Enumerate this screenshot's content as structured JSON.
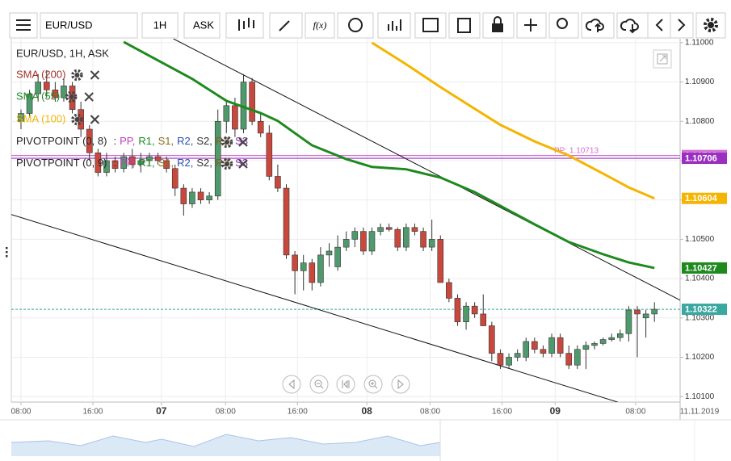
{
  "toolbar": {
    "symbol": "EUR/USD",
    "interval": "1H",
    "price_type": "ASK",
    "function": "f(x)"
  },
  "legend": {
    "instrument": "EUR/USD, 1H, ASK",
    "indicators": [
      {
        "name": "SMA (200)",
        "color": "#a0302a"
      },
      {
        "name": "SMA (55)",
        "color": "#1e8a1e"
      },
      {
        "name": "SMA (100)",
        "color": "#f5b400"
      }
    ],
    "pivots": [
      {
        "name": "PIVOTPOINT (0, 8)",
        "lead": ":",
        "levels": [
          "PP,",
          "R1,",
          "S1,",
          "R2,",
          "S2,",
          "R3,",
          "S3"
        ]
      },
      {
        "name": "PIVOTPOINT (0, 9)",
        "lead": ":",
        "levels": [
          "PP,",
          "R1,",
          "S1,",
          "R2,",
          "S2,",
          "R3,",
          "S3"
        ]
      }
    ],
    "level_colors": [
      "#c03cc0",
      "#1e8a1e",
      "#8a6d1e",
      "#2a4fb0",
      "#333333",
      "#8a5a1e",
      "#8a2ab0"
    ]
  },
  "chart_data": {
    "type": "candlestick",
    "up_color": "#4f9a6c",
    "down_color": "#c9483d",
    "x": [
      0,
      1,
      2,
      3,
      4,
      5,
      6,
      7,
      8,
      9,
      10,
      11,
      12,
      13,
      14,
      15,
      16,
      17,
      18,
      19,
      20,
      21,
      22,
      23,
      24,
      25,
      26,
      27,
      28,
      29,
      30,
      31,
      32,
      33,
      34,
      35,
      36,
      37,
      38,
      39,
      40,
      41,
      42,
      43,
      44,
      45,
      46,
      47,
      48,
      49,
      50,
      51,
      52,
      53,
      54,
      55,
      56,
      57,
      58,
      59,
      60,
      61,
      62,
      63,
      64,
      65,
      66,
      67,
      68,
      69,
      70,
      71,
      72,
      73,
      74
    ],
    "open": [
      1.108,
      1.1082,
      1.1087,
      1.109,
      1.1088,
      1.1086,
      1.1089,
      1.1083,
      1.1078,
      1.1072,
      1.1067,
      1.107,
      1.1068,
      1.1071,
      1.1069,
      1.107,
      1.1071,
      1.107,
      1.1068,
      1.1063,
      1.1059,
      1.1062,
      1.106,
      1.1061,
      1.108,
      1.1084,
      1.1078,
      1.109,
      1.108,
      1.1077,
      1.1066,
      1.1063,
      1.1046,
      1.1042,
      1.1044,
      1.1039,
      1.1046,
      1.1043,
      1.1048,
      1.105,
      1.1052,
      1.1047,
      1.1052,
      1.1053,
      1.10525,
      1.1048,
      1.1053,
      1.1052,
      1.1048,
      1.105,
      1.1039,
      1.1035,
      1.1029,
      1.1033,
      1.1031,
      1.1028,
      1.1021,
      1.1018,
      1.102,
      1.102,
      1.1024,
      1.1022,
      1.1021,
      1.1025,
      1.1021,
      1.1018,
      1.1022,
      1.1023,
      1.10235,
      1.10245,
      1.1025,
      1.1026,
      1.1032,
      1.103,
      1.1031
    ],
    "high": [
      1.1083,
      1.1088,
      1.1092,
      1.1093,
      1.109,
      1.1091,
      1.109,
      1.1085,
      1.1079,
      1.1073,
      1.1072,
      1.1071,
      1.1072,
      1.1073,
      1.1072,
      1.1072,
      1.1072,
      1.1071,
      1.1069,
      1.1064,
      1.1063,
      1.1063,
      1.1062,
      1.1083,
      1.1085,
      1.1086,
      1.1092,
      1.1091,
      1.1082,
      1.1079,
      1.1069,
      1.1064,
      1.1047,
      1.1046,
      1.1045,
      1.1048,
      1.1049,
      1.1051,
      1.1052,
      1.1053,
      1.1053,
      1.1053,
      1.1054,
      1.1054,
      1.1053,
      1.1054,
      1.1054,
      1.1053,
      1.1055,
      1.1051,
      1.104,
      1.1036,
      1.1034,
      1.1034,
      1.1036,
      1.1029,
      1.1022,
      1.1021,
      1.1022,
      1.1025,
      1.1025,
      1.1023,
      1.1026,
      1.1026,
      1.1023,
      1.1023,
      1.1024,
      1.1024,
      1.1025,
      1.1026,
      1.1027,
      1.1033,
      1.1033,
      1.1032,
      1.1034
    ],
    "low": [
      1.1078,
      1.1081,
      1.1085,
      1.1086,
      1.1085,
      1.1085,
      1.1082,
      1.1076,
      1.107,
      1.1066,
      1.1066,
      1.1067,
      1.1067,
      1.1068,
      1.1067,
      1.1069,
      1.1069,
      1.1067,
      1.1061,
      1.1056,
      1.1058,
      1.1059,
      1.1059,
      1.106,
      1.1077,
      1.1076,
      1.1077,
      1.1079,
      1.1076,
      1.1065,
      1.1062,
      1.1045,
      1.1036,
      1.1037,
      1.1037,
      1.1038,
      1.1043,
      1.1042,
      1.1047,
      1.1048,
      1.1046,
      1.1046,
      1.1051,
      1.1052,
      1.1047,
      1.1047,
      1.1051,
      1.1047,
      1.1047,
      1.1039,
      1.1034,
      1.1028,
      1.1027,
      1.103,
      1.1028,
      1.1019,
      1.1017,
      1.1017,
      1.1019,
      1.1019,
      1.1021,
      1.102,
      1.102,
      1.102,
      1.1017,
      1.1017,
      1.1017,
      1.1022,
      1.1023,
      1.1024,
      1.1024,
      1.1024,
      1.102,
      1.1025,
      1.1029
    ],
    "close": [
      1.1082,
      1.1087,
      1.109,
      1.1088,
      1.1086,
      1.1089,
      1.1083,
      1.1078,
      1.1072,
      1.1067,
      1.107,
      1.1068,
      1.1071,
      1.1069,
      1.107,
      1.1071,
      1.107,
      1.1068,
      1.1063,
      1.1059,
      1.1062,
      1.106,
      1.1061,
      1.108,
      1.1084,
      1.1078,
      1.109,
      1.108,
      1.1077,
      1.1066,
      1.1063,
      1.1046,
      1.1042,
      1.1044,
      1.1039,
      1.1046,
      1.1047,
      1.1048,
      1.105,
      1.1052,
      1.1047,
      1.1052,
      1.1053,
      1.10525,
      1.1048,
      1.1053,
      1.1052,
      1.1048,
      1.105,
      1.1039,
      1.1035,
      1.1029,
      1.1033,
      1.1031,
      1.1028,
      1.1021,
      1.1018,
      1.102,
      1.1021,
      1.1024,
      1.1022,
      1.1021,
      1.1025,
      1.1021,
      1.1018,
      1.1022,
      1.1023,
      1.10235,
      1.10245,
      1.1025,
      1.1026,
      1.1032,
      1.1031,
      1.1031,
      1.10322
    ],
    "series": [
      {
        "name": "SMA (55)",
        "color": "#1e8a1e",
        "x": [
          12,
          16,
          20,
          24,
          28,
          30,
          34,
          38,
          41,
          45,
          49,
          53,
          56,
          60,
          64,
          68,
          71,
          74
        ],
        "values": [
          1.11002,
          1.10955,
          1.10908,
          1.10852,
          1.10821,
          1.10801,
          1.10739,
          1.10704,
          1.10684,
          1.10678,
          1.10657,
          1.1062,
          1.10585,
          1.10538,
          1.10493,
          1.10462,
          1.10441,
          1.10427
        ]
      },
      {
        "name": "SMA (100)",
        "color": "#f5b400",
        "x": [
          41,
          45,
          49,
          53,
          56,
          60,
          64,
          68,
          71,
          74
        ],
        "values": [
          1.11,
          1.10945,
          1.10887,
          1.10832,
          1.10791,
          1.10749,
          1.10713,
          1.10667,
          1.10632,
          1.10604
        ]
      }
    ],
    "trendlines": [
      {
        "color": "#111111",
        "x": [
          17.8,
          77
        ],
        "values": [
          1.1101,
          1.10345
        ]
      },
      {
        "color": "#111111",
        "x": [
          -1.13,
          69.7
        ],
        "values": [
          1.10563,
          1.10086
        ]
      }
    ],
    "pivot_lines": [
      {
        "value": 1.10713,
        "color": "#d070d0",
        "label": "PP: 1.10713"
      },
      {
        "value": 1.10706,
        "color": "#9a30c0"
      }
    ],
    "price_labels": [
      {
        "value": 1.10713,
        "color": "#d070d0"
      },
      {
        "value": 1.10706,
        "color": "#9a30c0"
      },
      {
        "value": 1.10604,
        "color": "#f5b400"
      },
      {
        "value": 1.10427,
        "color": "#1e8a1e"
      },
      {
        "value": 1.10322,
        "color": "#3aa8a0",
        "dashed_line": true
      }
    ],
    "xlim": [
      -1.13,
      77
    ],
    "ylim": [
      1.10086,
      1.1101
    ],
    "xticks": [
      {
        "value": 0,
        "label": "08:00"
      },
      {
        "value": 8.4,
        "label": "16:00"
      },
      {
        "value": 16.4,
        "label": "07"
      },
      {
        "value": 23.9,
        "label": "08:00"
      },
      {
        "value": 32.3,
        "label": "16:00"
      },
      {
        "value": 40.4,
        "label": "08"
      },
      {
        "value": 47.8,
        "label": "08:00"
      },
      {
        "value": 56.2,
        "label": "16:00"
      },
      {
        "value": 62.4,
        "label": "09"
      },
      {
        "value": 71.8,
        "label": "08:00"
      }
    ],
    "yticks": [
      {
        "value": 1.11,
        "label": "1.11000"
      },
      {
        "value": 1.109,
        "label": "1.10900"
      },
      {
        "value": 1.108,
        "label": "1.10800"
      },
      {
        "value": 1.107,
        "label": "1.10700"
      },
      {
        "value": 1.106,
        "label": "1.10600"
      },
      {
        "value": 1.105,
        "label": "1.10500"
      },
      {
        "value": 1.104,
        "label": "1.10400"
      },
      {
        "value": 1.103,
        "label": "1.10300"
      },
      {
        "value": 1.102,
        "label": "1.10200"
      },
      {
        "value": 1.101,
        "label": "1.10100"
      }
    ],
    "grid": true,
    "date_label": "11.11.2019"
  }
}
